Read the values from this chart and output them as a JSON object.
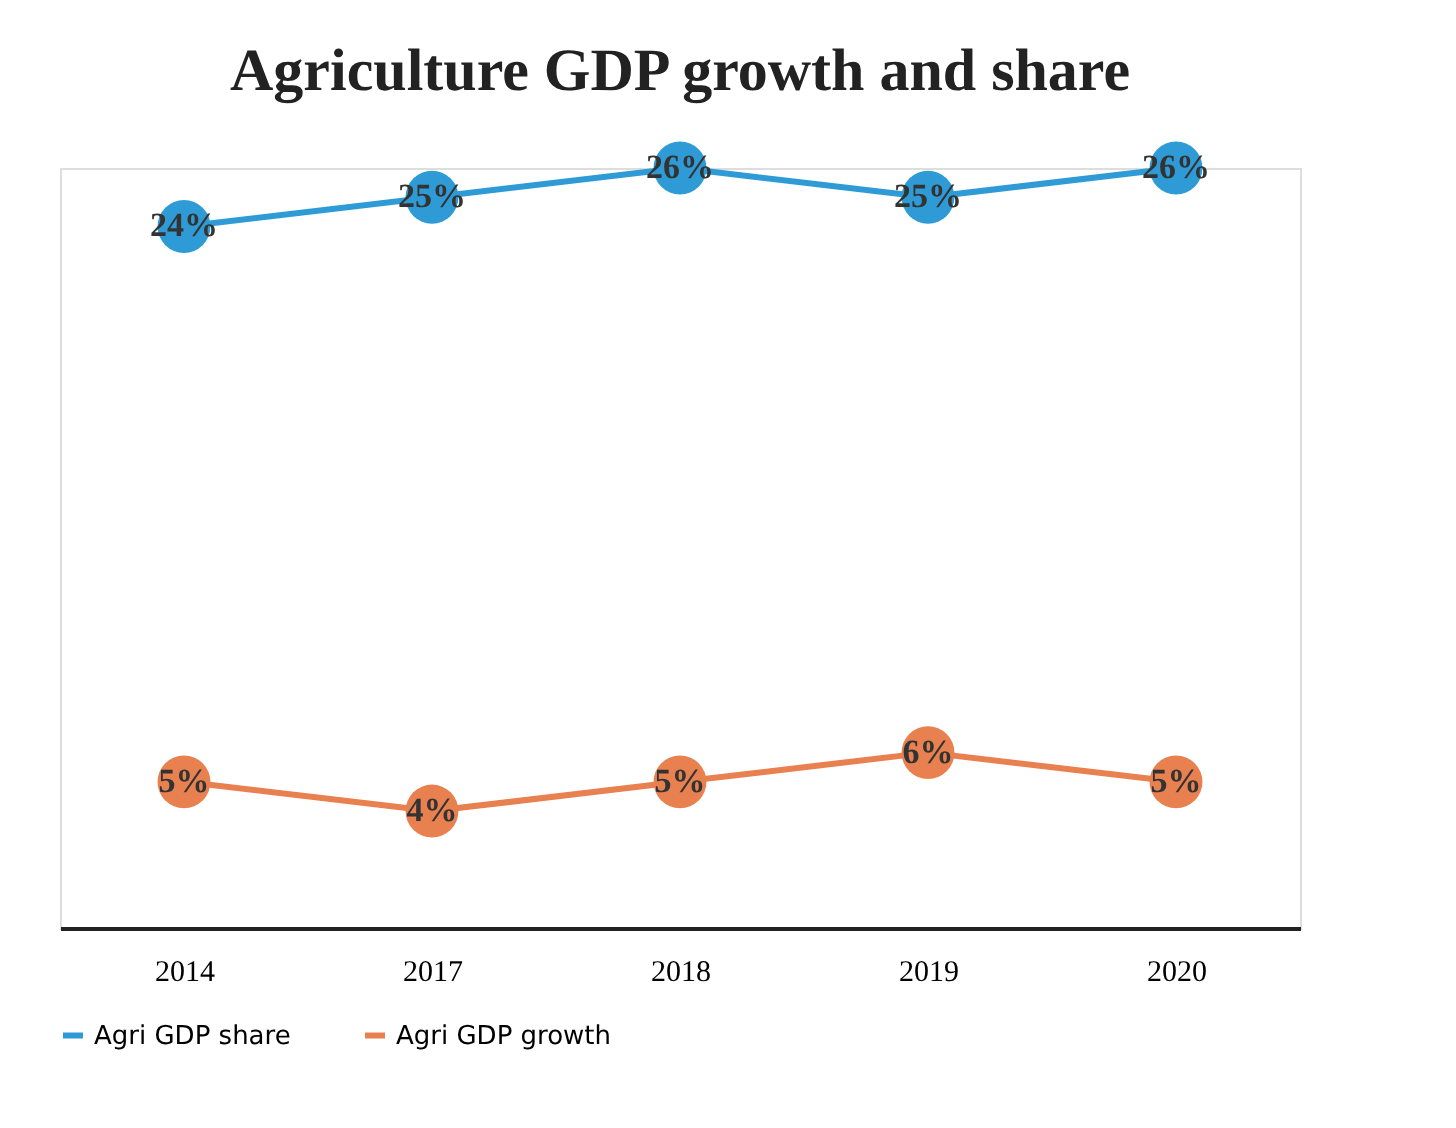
{
  "chart_data": {
    "type": "line",
    "title": "Agriculture GDP growth and share",
    "categories": [
      "2014",
      "2017",
      "2018",
      "2019",
      "2020"
    ],
    "series": [
      {
        "name": "Agri GDP share",
        "color": "#2e9bd6",
        "values": [
          24,
          25,
          26,
          25,
          26
        ],
        "value_labels": [
          "24%",
          "25%",
          "26%",
          "25%",
          "26%"
        ]
      },
      {
        "name": "Agri GDP growth",
        "color": "#e8804f",
        "values": [
          5,
          4,
          5,
          6,
          5
        ],
        "value_labels": [
          "5%",
          "4%",
          "5%",
          "6%",
          "5%"
        ]
      }
    ],
    "marker": "circle",
    "legend": "bottom",
    "grid": false,
    "tick_labels": "x"
  }
}
